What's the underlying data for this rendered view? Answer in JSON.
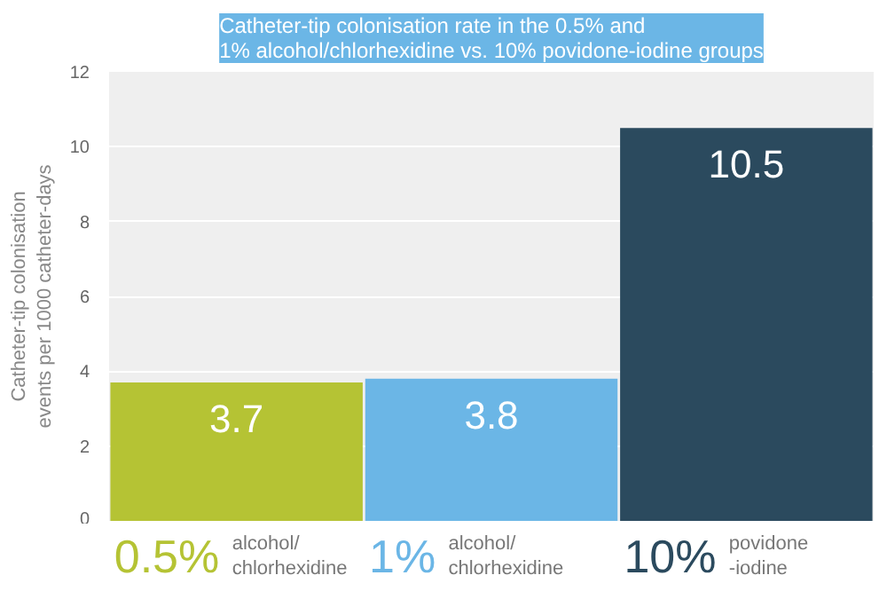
{
  "chart_data": {
    "type": "bar",
    "title": "Catheter-tip colonisation rate in the 0.5% and\n1% alcohol/chlorhexidine vs. 10% povidone-iodine groups",
    "ylabel": "Catheter-tip colonisation\nevents per 1000 catheter-days",
    "categories": [
      "0.5% alcohol/\nchlorhexidine",
      "1% alcohol/\nchlorhexidine",
      "10% povidone\n-iodine"
    ],
    "values": [
      3.7,
      3.8,
      10.5
    ],
    "colors": [
      "#b5c334",
      "#6bb6e6",
      "#2b4a5e"
    ],
    "ylim": [
      0,
      12
    ],
    "yticks": [
      0,
      2,
      4,
      6,
      8,
      10,
      12
    ],
    "grid": "y",
    "data_labels": true
  }
}
